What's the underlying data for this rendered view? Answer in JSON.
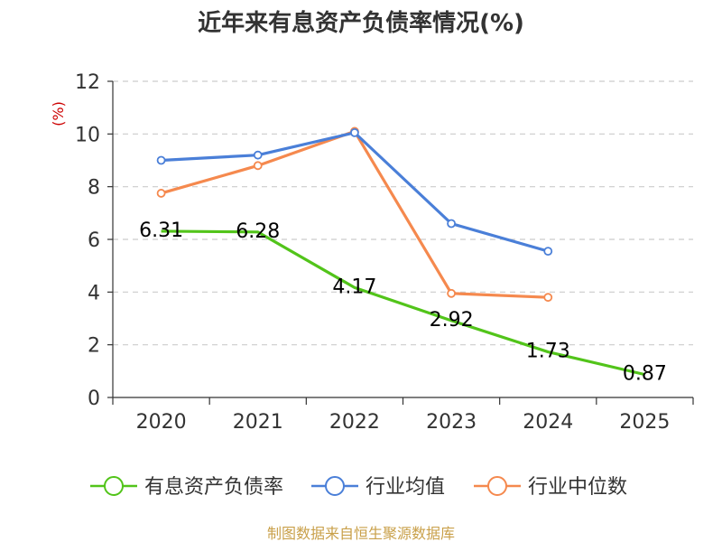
{
  "chart_data": {
    "type": "line",
    "title": "近年来有息资产负债率情况(%)",
    "ylabel": "(%)",
    "categories": [
      "2020",
      "2021",
      "2022",
      "2023",
      "2024",
      "2025"
    ],
    "ylim": [
      0,
      12
    ],
    "yticks": [
      0,
      2,
      4,
      6,
      8,
      10,
      12
    ],
    "grid": true,
    "legend_position": "bottom",
    "series": [
      {
        "name": "有息资产负债率",
        "color": "#52c41a",
        "values": [
          6.31,
          6.28,
          4.17,
          2.92,
          1.73,
          0.87
        ],
        "labels": [
          "6.31",
          "6.28",
          "4.17",
          "2.92",
          "1.73",
          "0.87"
        ]
      },
      {
        "name": "行业均值",
        "color": "#4a7fd8",
        "values": [
          9.0,
          9.2,
          10.05,
          6.6,
          5.55,
          null
        ]
      },
      {
        "name": "行业中位数",
        "color": "#f5894e",
        "values": [
          7.75,
          8.8,
          10.1,
          3.95,
          3.8,
          null
        ]
      }
    ],
    "source": "制图数据来自恒生聚源数据库"
  }
}
